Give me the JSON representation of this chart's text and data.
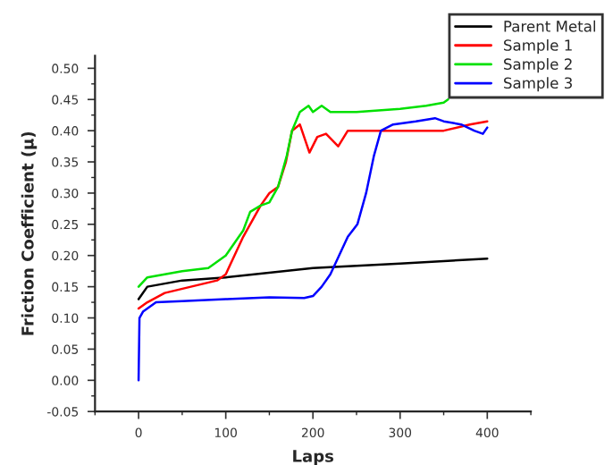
{
  "chart_data": {
    "type": "line",
    "xlabel": "Laps",
    "ylabel": "Friction Coefficient (µ)",
    "xlim": [
      -50,
      450
    ],
    "ylim": [
      -0.05,
      0.52
    ],
    "xticks": [
      0,
      100,
      200,
      300,
      400
    ],
    "yticks": [
      {
        "value": -0.05,
        "label": "-0.05"
      },
      {
        "value": 0,
        "label": "0.00"
      },
      {
        "value": 0.05,
        "label": "0.05"
      },
      {
        "value": 0.1,
        "label": "0.10"
      },
      {
        "value": 0.15,
        "label": "0.15"
      },
      {
        "value": 0.2,
        "label": "0.20"
      },
      {
        "value": 0.25,
        "label": "0.25"
      },
      {
        "value": 0.3,
        "label": "0.30"
      },
      {
        "value": 0.35,
        "label": "0.35"
      },
      {
        "value": 0.4,
        "label": "0.40"
      },
      {
        "value": 0.45,
        "label": "0.45"
      },
      {
        "value": 0.5,
        "label": "0.50"
      }
    ],
    "grid": false,
    "legend": "top right",
    "marker": "none",
    "line_style": "solid",
    "series": [
      {
        "name": "Parent Metal",
        "color": "#000000",
        "x": [
          0,
          10,
          50,
          100,
          200,
          300,
          400
        ],
        "values": [
          0.13,
          0.15,
          0.16,
          0.165,
          0.18,
          0.187,
          0.195
        ]
      },
      {
        "name": "Sample 1",
        "color": "#ff0000",
        "x": [
          0,
          10,
          30,
          60,
          90,
          100,
          110,
          120,
          128,
          140,
          150,
          160,
          169,
          176,
          185,
          196,
          205,
          215,
          229,
          240,
          300,
          350,
          380,
          400
        ],
        "values": [
          0.115,
          0.125,
          0.14,
          0.15,
          0.16,
          0.17,
          0.2,
          0.23,
          0.25,
          0.28,
          0.3,
          0.31,
          0.35,
          0.4,
          0.41,
          0.365,
          0.39,
          0.395,
          0.375,
          0.4,
          0.4,
          0.4,
          0.41,
          0.415
        ]
      },
      {
        "name": "Sample 2",
        "color": "#00e000",
        "x": [
          0,
          10,
          50,
          80,
          100,
          110,
          120,
          128,
          140,
          150,
          160,
          170,
          176,
          185,
          195,
          200,
          210,
          220,
          250,
          300,
          330,
          350,
          355
        ],
        "values": [
          0.15,
          0.165,
          0.175,
          0.18,
          0.2,
          0.22,
          0.24,
          0.27,
          0.28,
          0.285,
          0.31,
          0.36,
          0.4,
          0.43,
          0.44,
          0.43,
          0.44,
          0.43,
          0.43,
          0.435,
          0.44,
          0.445,
          0.45
        ]
      },
      {
        "name": "Sample 3",
        "color": "#0000ff",
        "x": [
          0,
          1,
          5,
          20,
          50,
          100,
          150,
          190,
          200,
          210,
          220,
          230,
          240,
          251,
          261,
          270,
          278,
          292,
          318,
          340,
          350,
          370,
          385,
          395,
          400
        ],
        "values": [
          0.0,
          0.1,
          0.11,
          0.125,
          0.127,
          0.13,
          0.133,
          0.132,
          0.135,
          0.15,
          0.17,
          0.2,
          0.23,
          0.25,
          0.3,
          0.36,
          0.4,
          0.41,
          0.415,
          0.42,
          0.415,
          0.41,
          0.4,
          0.395,
          0.405
        ]
      }
    ]
  }
}
